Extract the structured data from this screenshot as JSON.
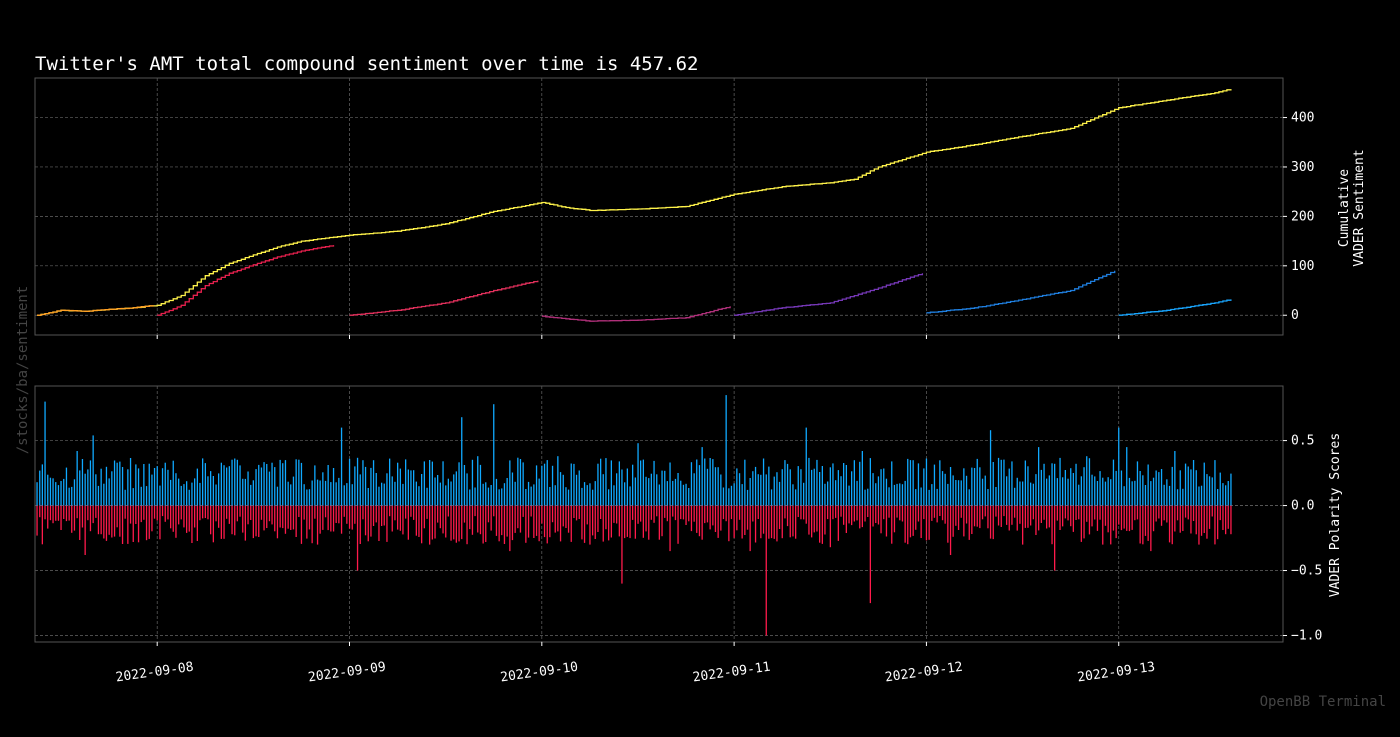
{
  "watermark_left": "/stocks/ba/sentiment",
  "watermark_right": "OpenBB Terminal",
  "colors": {
    "background": "#000000",
    "cumulative_total": "#fff34a",
    "positive": "#10a9ff",
    "negative": "#ff1a4b",
    "day_segments": [
      "#ffa025",
      "#e8204e",
      "#e3305c",
      "#b0307a",
      "#7638b8",
      "#1f7fe0",
      "#19a6ff"
    ]
  },
  "chart_data": [
    {
      "type": "line",
      "title": "Twitter's AMT total compound sentiment over time is 457.62",
      "ylabel": "Cumulative\nVADER Sentiment",
      "xlim": [
        "2022-09-07T08:45",
        "2022-09-13T20:30"
      ],
      "ylim": [
        -40,
        480
      ],
      "yticks": [
        0,
        100,
        200,
        300,
        400
      ],
      "grid": true,
      "series": [
        {
          "role": "total",
          "points": [
            [
              "2022-09-07T09:00",
              0
            ],
            [
              "2022-09-07T12:00",
              10
            ],
            [
              "2022-09-07T15:00",
              8
            ],
            [
              "2022-09-07T18:00",
              12
            ],
            [
              "2022-09-07T21:00",
              15
            ],
            [
              "2022-09-08T00:00",
              20
            ],
            [
              "2022-09-08T03:00",
              40
            ],
            [
              "2022-09-08T06:00",
              80
            ],
            [
              "2022-09-08T09:00",
              105
            ],
            [
              "2022-09-08T12:00",
              122
            ],
            [
              "2022-09-08T15:00",
              138
            ],
            [
              "2022-09-08T18:00",
              150
            ],
            [
              "2022-09-08T21:00",
              156
            ],
            [
              "2022-09-09T00:00",
              162
            ],
            [
              "2022-09-09T06:00",
              170
            ],
            [
              "2022-09-09T12:00",
              185
            ],
            [
              "2022-09-09T18:00",
              210
            ],
            [
              "2022-09-10T00:00",
              228
            ],
            [
              "2022-09-10T03:00",
              218
            ],
            [
              "2022-09-10T06:00",
              212
            ],
            [
              "2022-09-10T12:00",
              215
            ],
            [
              "2022-09-10T18:00",
              220
            ],
            [
              "2022-09-11T00:00",
              245
            ],
            [
              "2022-09-11T06:00",
              260
            ],
            [
              "2022-09-11T12:00",
              268
            ],
            [
              "2022-09-11T15:00",
              275
            ],
            [
              "2022-09-11T18:00",
              300
            ],
            [
              "2022-09-12T00:00",
              330
            ],
            [
              "2022-09-12T06:00",
              345
            ],
            [
              "2022-09-12T12:00",
              362
            ],
            [
              "2022-09-12T18:00",
              378
            ],
            [
              "2022-09-13T00:00",
              420
            ],
            [
              "2022-09-13T06:00",
              435
            ],
            [
              "2022-09-13T12:00",
              450
            ],
            [
              "2022-09-13T14:00",
              457.62
            ]
          ]
        },
        {
          "role": "day",
          "color_index": 0,
          "points": [
            [
              "2022-09-07T09:00",
              0
            ],
            [
              "2022-09-07T12:00",
              10
            ],
            [
              "2022-09-07T15:00",
              8
            ],
            [
              "2022-09-07T18:00",
              12
            ],
            [
              "2022-09-07T21:00",
              15
            ],
            [
              "2022-09-07T23:30",
              20
            ]
          ]
        },
        {
          "role": "day",
          "color_index": 1,
          "points": [
            [
              "2022-09-08T00:00",
              0
            ],
            [
              "2022-09-08T03:00",
              20
            ],
            [
              "2022-09-08T06:00",
              60
            ],
            [
              "2022-09-08T09:00",
              85
            ],
            [
              "2022-09-08T12:00",
              102
            ],
            [
              "2022-09-08T15:00",
              118
            ],
            [
              "2022-09-08T18:00",
              130
            ],
            [
              "2022-09-08T22:00",
              142
            ]
          ]
        },
        {
          "role": "day",
          "color_index": 2,
          "points": [
            [
              "2022-09-09T00:00",
              0
            ],
            [
              "2022-09-09T06:00",
              10
            ],
            [
              "2022-09-09T12:00",
              25
            ],
            [
              "2022-09-09T18:00",
              50
            ],
            [
              "2022-09-09T23:30",
              70
            ]
          ]
        },
        {
          "role": "day",
          "color_index": 3,
          "points": [
            [
              "2022-09-10T00:00",
              -2
            ],
            [
              "2022-09-10T06:00",
              -12
            ],
            [
              "2022-09-10T12:00",
              -10
            ],
            [
              "2022-09-10T18:00",
              -5
            ],
            [
              "2022-09-10T23:30",
              18
            ]
          ]
        },
        {
          "role": "day",
          "color_index": 4,
          "points": [
            [
              "2022-09-11T00:00",
              0
            ],
            [
              "2022-09-11T06:00",
              15
            ],
            [
              "2022-09-11T12:00",
              25
            ],
            [
              "2022-09-11T18:00",
              55
            ],
            [
              "2022-09-11T23:30",
              85
            ]
          ]
        },
        {
          "role": "day",
          "color_index": 5,
          "points": [
            [
              "2022-09-12T00:00",
              5
            ],
            [
              "2022-09-12T06:00",
              15
            ],
            [
              "2022-09-12T12:00",
              32
            ],
            [
              "2022-09-12T18:00",
              50
            ],
            [
              "2022-09-12T23:30",
              90
            ]
          ]
        },
        {
          "role": "day",
          "color_index": 6,
          "points": [
            [
              "2022-09-13T00:00",
              0
            ],
            [
              "2022-09-13T06:00",
              10
            ],
            [
              "2022-09-13T12:00",
              25
            ],
            [
              "2022-09-13T14:00",
              32
            ]
          ]
        }
      ]
    },
    {
      "type": "bar",
      "ylabel": "VADER Polarity Scores",
      "xlim": [
        "2022-09-07T08:45",
        "2022-09-13T20:30"
      ],
      "ylim": [
        -1.05,
        0.92
      ],
      "yticks": [
        0.5,
        0.0,
        -0.5,
        -1.0
      ],
      "ytick_labels": [
        "0.5",
        "0.0",
        "−0.5",
        "−1.0"
      ],
      "xticks": [
        "2022-09-08",
        "2022-09-09",
        "2022-09-10",
        "2022-09-11",
        "2022-09-12",
        "2022-09-13"
      ],
      "grid": true,
      "value_range": {
        "positive": [
          0.0,
          0.85
        ],
        "negative": [
          -1.0,
          0.0
        ]
      },
      "bars": [
        [
          "2022-09-07T09:00",
          0.18
        ],
        [
          "2022-09-07T09:30",
          -0.2
        ],
        [
          "2022-09-07T10:00",
          0.8
        ],
        [
          "2022-09-07T10:30",
          -0.25
        ],
        [
          "2022-09-07T11:30",
          0.42
        ],
        [
          "2022-09-07T12:30",
          -0.3
        ],
        [
          "2022-09-07T14:00",
          0.42
        ],
        [
          "2022-09-07T15:00",
          -0.38
        ],
        [
          "2022-09-07T16:00",
          0.54
        ],
        [
          "2022-09-07T17:00",
          -0.22
        ],
        [
          "2022-09-07T19:00",
          0.33
        ],
        [
          "2022-09-07T21:00",
          -0.28
        ],
        [
          "2022-09-08T01:00",
          0.33
        ],
        [
          "2022-09-08T04:00",
          -0.2
        ],
        [
          "2022-09-08T08:00",
          0.33
        ],
        [
          "2022-09-08T12:00",
          -0.25
        ],
        [
          "2022-09-08T16:00",
          0.35
        ],
        [
          "2022-09-08T20:00",
          -0.3
        ],
        [
          "2022-09-08T23:00",
          0.6
        ],
        [
          "2022-09-09T01:00",
          -0.5
        ],
        [
          "2022-09-09T06:00",
          0.33
        ],
        [
          "2022-09-09T10:00",
          -0.3
        ],
        [
          "2022-09-09T14:00",
          0.68
        ],
        [
          "2022-09-09T16:00",
          0.38
        ],
        [
          "2022-09-09T18:00",
          0.78
        ],
        [
          "2022-09-09T20:00",
          -0.35
        ],
        [
          "2022-09-10T02:00",
          0.38
        ],
        [
          "2022-09-10T06:00",
          -0.3
        ],
        [
          "2022-09-10T10:00",
          -0.6
        ],
        [
          "2022-09-10T12:00",
          0.48
        ],
        [
          "2022-09-10T16:00",
          -0.35
        ],
        [
          "2022-09-10T20:00",
          0.45
        ],
        [
          "2022-09-10T23:00",
          0.85
        ],
        [
          "2022-09-11T02:00",
          -0.35
        ],
        [
          "2022-09-11T04:00",
          -1.0
        ],
        [
          "2022-09-11T09:00",
          0.6
        ],
        [
          "2022-09-11T12:00",
          -0.32
        ],
        [
          "2022-09-11T16:00",
          0.42
        ],
        [
          "2022-09-11T17:00",
          -0.75
        ],
        [
          "2022-09-11T22:00",
          0.35
        ],
        [
          "2022-09-12T03:00",
          -0.38
        ],
        [
          "2022-09-12T08:00",
          0.58
        ],
        [
          "2022-09-12T12:00",
          -0.3
        ],
        [
          "2022-09-12T14:00",
          0.45
        ],
        [
          "2022-09-12T16:00",
          -0.5
        ],
        [
          "2022-09-12T20:00",
          0.38
        ],
        [
          "2022-09-12T22:00",
          -0.3
        ],
        [
          "2022-09-13T00:00",
          0.6
        ],
        [
          "2022-09-13T01:00",
          0.45
        ],
        [
          "2022-09-13T04:00",
          -0.35
        ],
        [
          "2022-09-13T07:00",
          0.42
        ],
        [
          "2022-09-13T10:00",
          -0.3
        ],
        [
          "2022-09-13T12:00",
          0.35
        ],
        [
          "2022-09-13T14:00",
          -0.22
        ]
      ]
    }
  ]
}
